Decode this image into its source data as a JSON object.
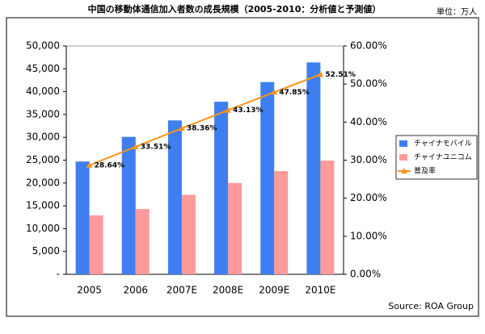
{
  "chart_data": {
    "type": "bar-line",
    "title": "中国の移動体通信加入者数の成長規模（2005-2010：分析値と予測値）",
    "unit_label": "単位：万人",
    "source": "Source: ROA Group",
    "categories": [
      "2005",
      "2006",
      "2007E",
      "2008E",
      "2009E",
      "2010E"
    ],
    "series": [
      {
        "name": "チャイナモバイル",
        "color": "#3f7ef0",
        "type": "bar",
        "values": [
          24700,
          30100,
          33700,
          37800,
          42100,
          46400
        ]
      },
      {
        "name": "チャイナユニコム",
        "color": "#ff9a9a",
        "type": "bar",
        "values": [
          12900,
          14300,
          17400,
          20000,
          22600,
          24900
        ]
      },
      {
        "name": "普及率",
        "color": "#f7941d",
        "type": "line",
        "axis": "y2",
        "values": [
          28.64,
          33.51,
          38.36,
          43.13,
          47.85,
          52.51
        ],
        "value_labels": [
          "28.64%",
          "33.51%",
          "38.36%",
          "43.13%",
          "47.85%",
          "52.51%"
        ]
      }
    ],
    "ylim": [
      0,
      50000
    ],
    "yticks": [
      {
        "value": 0,
        "label": "-"
      },
      {
        "value": 5000,
        "label": "5,000"
      },
      {
        "value": 10000,
        "label": "10,000"
      },
      {
        "value": 15000,
        "label": "15,000"
      },
      {
        "value": 20000,
        "label": "20,000"
      },
      {
        "value": 25000,
        "label": "25,000"
      },
      {
        "value": 30000,
        "label": "30,000"
      },
      {
        "value": 35000,
        "label": "35,000"
      },
      {
        "value": 40000,
        "label": "40,000"
      },
      {
        "value": 45000,
        "label": "45,000"
      },
      {
        "value": 50000,
        "label": "50,000"
      }
    ],
    "y2lim": [
      0,
      60
    ],
    "y2ticks": [
      {
        "value": 0,
        "label": "0.00%"
      },
      {
        "value": 10,
        "label": "10.00%"
      },
      {
        "value": 20,
        "label": "20.00%"
      },
      {
        "value": 30,
        "label": "30.00%"
      },
      {
        "value": 40,
        "label": "40.00%"
      },
      {
        "value": 50,
        "label": "50.00%"
      },
      {
        "value": 60,
        "label": "60.00%"
      }
    ],
    "legend": "right"
  }
}
